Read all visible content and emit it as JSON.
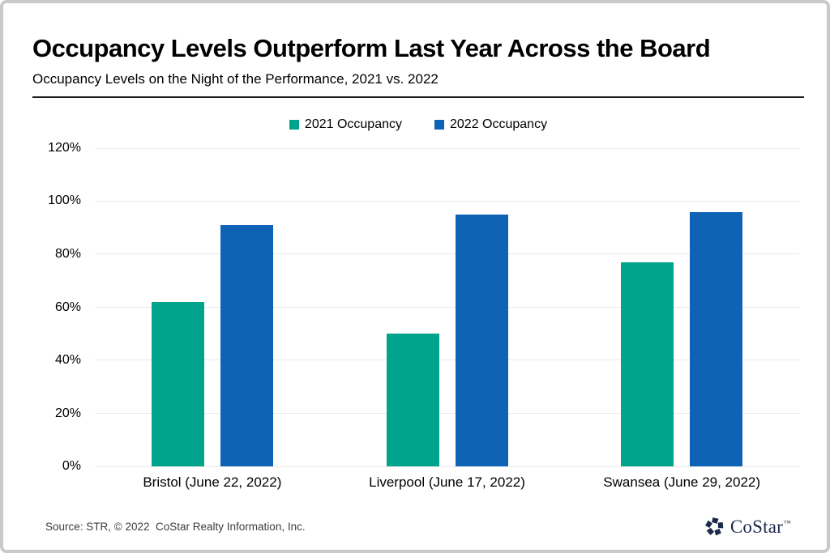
{
  "header": {
    "title": "Occupancy Levels Outperform Last Year Across the Board",
    "subtitle": "Occupancy Levels on the Night of the Performance, 2021 vs. 2022"
  },
  "chart_data": {
    "type": "bar",
    "categories": [
      "Bristol (June 22, 2022)",
      "Liverpool (June 17, 2022)",
      "Swansea (June 29, 2022)"
    ],
    "series": [
      {
        "name": "2021 Occupancy",
        "color": "#00a48c",
        "values": [
          62,
          50,
          77
        ]
      },
      {
        "name": "2022 Occupancy",
        "color": "#0f63b5",
        "values": [
          91,
          95,
          96
        ]
      }
    ],
    "title": "Occupancy Levels Outperform Last Year Across the Board",
    "xlabel": "",
    "ylabel": "",
    "ylim": [
      0,
      120
    ],
    "ytick_step": 20,
    "ytick_suffix": "%",
    "grid": true,
    "legend_position": "top-center"
  },
  "footer": {
    "source": "Source: STR, © 2022  CoStar Realty Information, Inc.",
    "logo_text": "CoStar",
    "logo_tm": "™"
  },
  "colors": {
    "series_2021": "#00a48c",
    "series_2022": "#0f63b5",
    "gridline": "#e9e9e9",
    "frame_border": "#c9c9c9",
    "logo_navy": "#1c2b4a",
    "source_text": "#3d3d3d"
  }
}
